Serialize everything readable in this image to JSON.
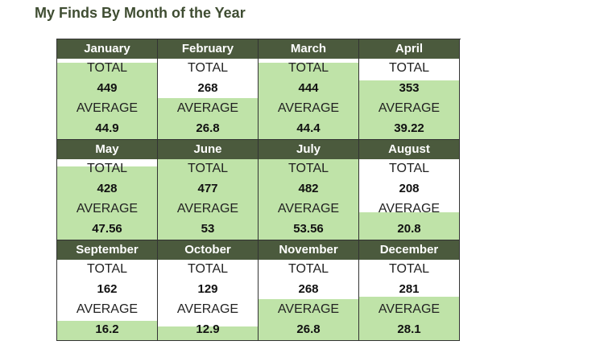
{
  "title": "My Finds By Month of the Year",
  "labels": {
    "total": "TOTAL",
    "average": "AVERAGE"
  },
  "colors": {
    "header_bg": "#4b5a3d",
    "fill": "#bfe3a8",
    "title": "#3f4d32"
  },
  "months": [
    {
      "name": "January",
      "total": "449",
      "average": "44.9",
      "fill_fraction": 0.94
    },
    {
      "name": "February",
      "total": "268",
      "average": "26.8",
      "fill_fraction": 0.5
    },
    {
      "name": "March",
      "total": "444",
      "average": "44.4",
      "fill_fraction": 0.94
    },
    {
      "name": "April",
      "total": "353",
      "average": "39.22",
      "fill_fraction": 0.72
    },
    {
      "name": "May",
      "total": "428",
      "average": "47.56",
      "fill_fraction": 0.9
    },
    {
      "name": "June",
      "total": "477",
      "average": "53",
      "fill_fraction": 1.0
    },
    {
      "name": "July",
      "total": "482",
      "average": "53.56",
      "fill_fraction": 1.0
    },
    {
      "name": "August",
      "total": "208",
      "average": "20.8",
      "fill_fraction": 0.34
    },
    {
      "name": "September",
      "total": "162",
      "average": "16.2",
      "fill_fraction": 0.24
    },
    {
      "name": "October",
      "total": "129",
      "average": "12.9",
      "fill_fraction": 0.17
    },
    {
      "name": "November",
      "total": "268",
      "average": "26.8",
      "fill_fraction": 0.5
    },
    {
      "name": "December",
      "total": "281",
      "average": "28.1",
      "fill_fraction": 0.53
    }
  ]
}
